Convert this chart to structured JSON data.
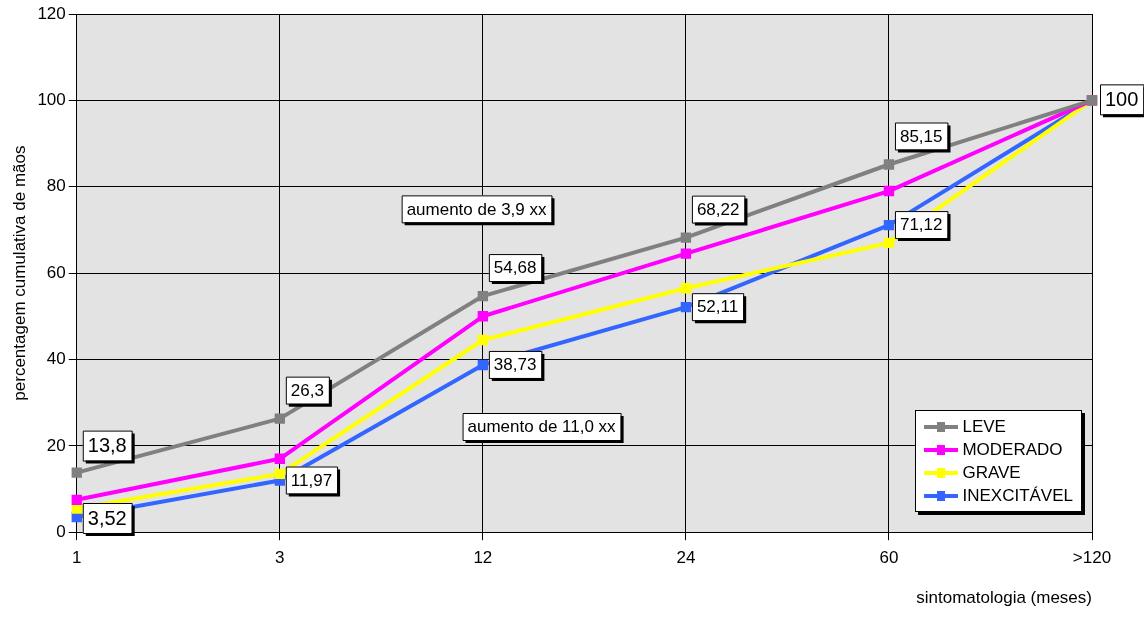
{
  "chart_data": {
    "type": "line",
    "xlabel": "sintomatologia (meses)",
    "ylabel": "percentagem cumulativa de mãos",
    "categories": [
      "1",
      "3",
      "12",
      "24",
      "60",
      ">120"
    ],
    "series": [
      {
        "name": "LEVE",
        "color": "#808080",
        "values": [
          13.8,
          26.3,
          54.68,
          68.22,
          85.15,
          100
        ],
        "value_labels": [
          "13,8",
          "26,3",
          "54,68",
          "68,22",
          "85,15",
          "100"
        ]
      },
      {
        "name": "MODERADO",
        "color": "#ff00ff",
        "values": [
          7.5,
          17,
          50,
          64.5,
          79,
          100
        ]
      },
      {
        "name": "GRAVE",
        "color": "#ffff00",
        "values": [
          5.5,
          13.5,
          44.5,
          56.5,
          67,
          100
        ]
      },
      {
        "name": "INEXCITÁVEL",
        "color": "#3366ff",
        "values": [
          3.52,
          11.97,
          38.73,
          52.11,
          71.12,
          100
        ],
        "value_labels": [
          "3,52",
          "11,97",
          "38,73",
          "52,11",
          "71,12",
          null
        ]
      }
    ],
    "ylim": [
      0,
      120
    ],
    "yticks": [
      0,
      20,
      40,
      60,
      80,
      100,
      120
    ],
    "grid": true,
    "legend": "bottom right",
    "marker": "square",
    "annotations": [
      "aumento de 3,9 xx",
      "aumento de 11,0 xx"
    ]
  }
}
